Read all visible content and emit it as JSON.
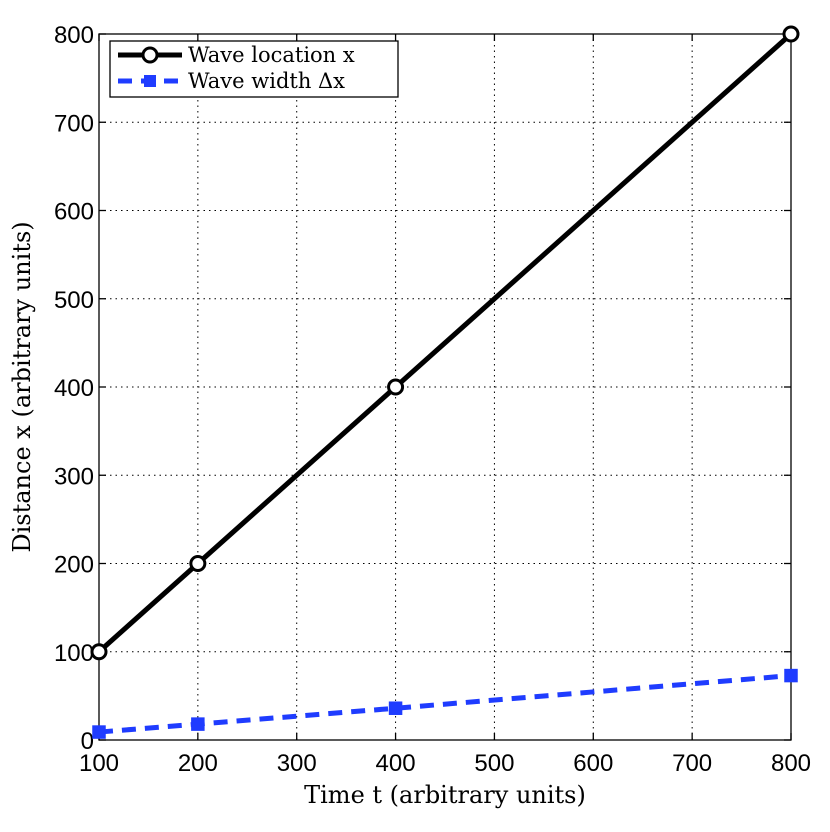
{
  "chart_data": {
    "type": "line",
    "title": "",
    "xlabel": "Time t (arbitrary units)",
    "ylabel": "Distance x (arbitrary units)",
    "xlim": [
      100,
      800
    ],
    "ylim": [
      0,
      800
    ],
    "x_ticks": [
      "100",
      "200",
      "300",
      "400",
      "500",
      "600",
      "700",
      "800"
    ],
    "y_ticks": [
      "0",
      "100",
      "200",
      "300",
      "400",
      "500",
      "600",
      "700",
      "800"
    ],
    "grid": true,
    "legend_position": "top-left",
    "series": [
      {
        "name": "Wave location x",
        "color": "#000000",
        "marker": "circle",
        "line_style": "solid",
        "x": [
          100,
          200,
          400,
          800
        ],
        "y": [
          100,
          200,
          400,
          800
        ]
      },
      {
        "name": "Wave width Δx",
        "color": "#1f3cff",
        "marker": "square",
        "line_style": "dashed",
        "x": [
          100,
          200,
          400,
          800
        ],
        "y": [
          9,
          18,
          36,
          73
        ]
      }
    ]
  }
}
